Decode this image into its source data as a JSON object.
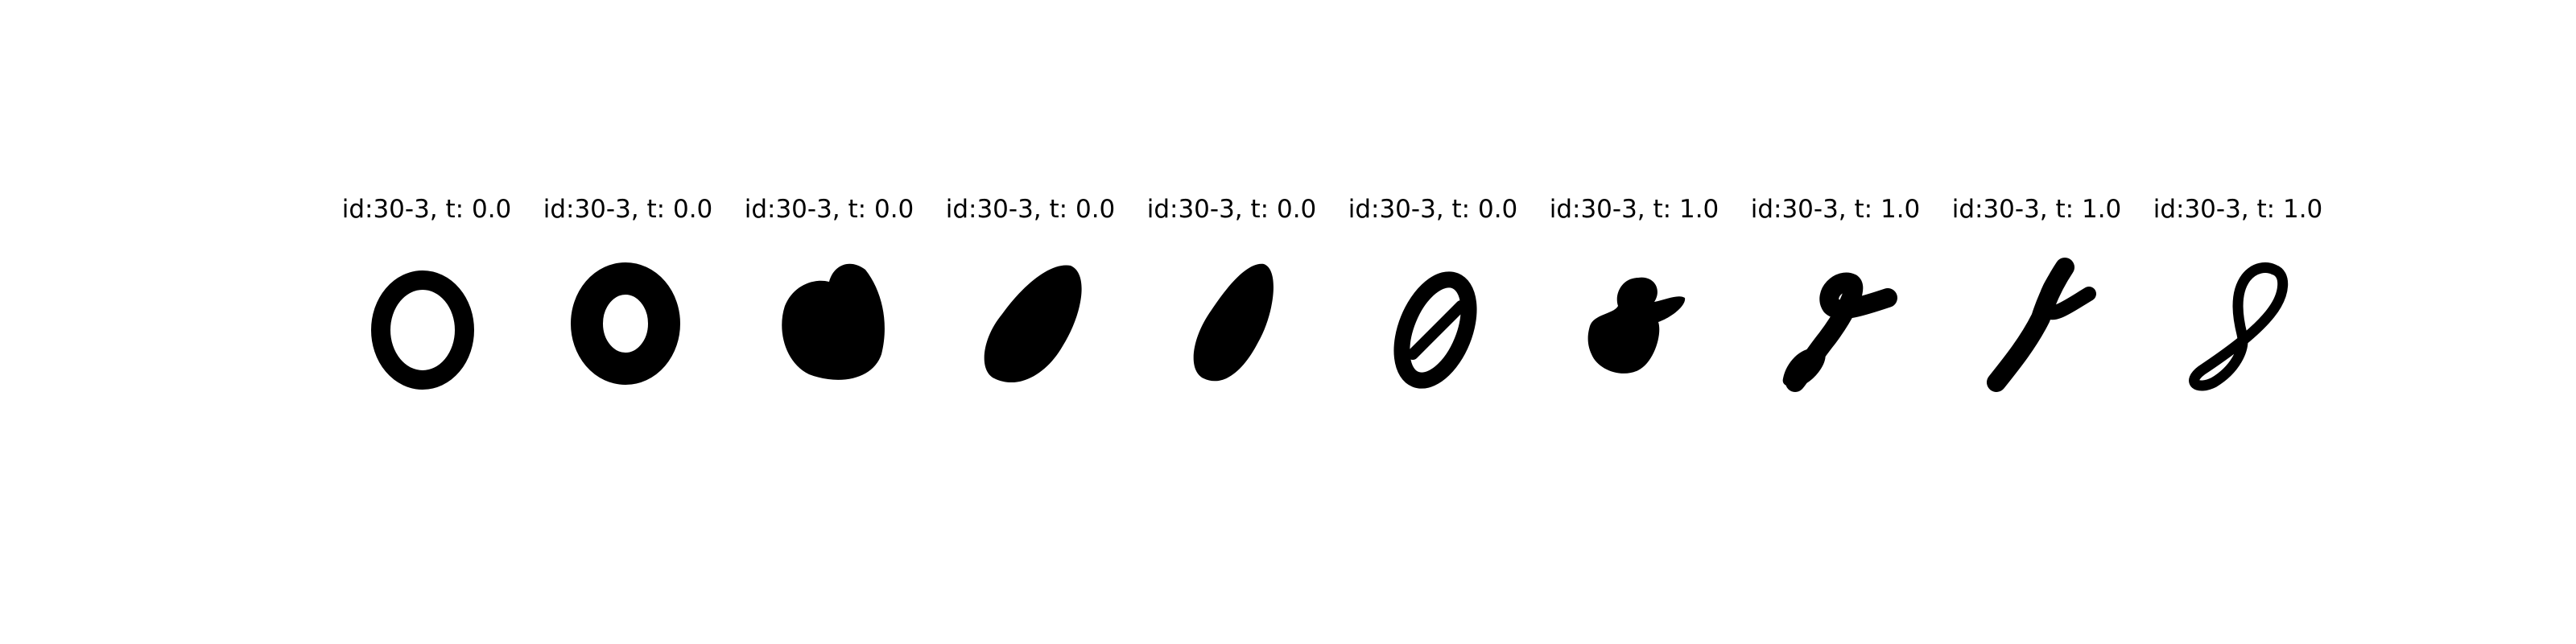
{
  "panels": [
    {
      "title": "id:30-3, t: 0.0",
      "digit_icon": "handwritten-zero-round"
    },
    {
      "title": "id:30-3, t: 0.0",
      "digit_icon": "handwritten-zero-thick"
    },
    {
      "title": "id:30-3, t: 0.0",
      "digit_icon": "handwritten-zero-blob"
    },
    {
      "title": "id:30-3, t: 0.0",
      "digit_icon": "handwritten-zero-slanted"
    },
    {
      "title": "id:30-3, t: 0.0",
      "digit_icon": "handwritten-zero-slanted-narrow"
    },
    {
      "title": "id:30-3, t: 0.0",
      "digit_icon": "handwritten-zero-crossed"
    },
    {
      "title": "id:30-3, t: 1.0",
      "digit_icon": "handwritten-eight-blob"
    },
    {
      "title": "id:30-3, t: 1.0",
      "digit_icon": "handwritten-eight-thick"
    },
    {
      "title": "id:30-3, t: 1.0",
      "digit_icon": "handwritten-eight-slanted"
    },
    {
      "title": "id:30-3, t: 1.0",
      "digit_icon": "handwritten-eight-thin"
    }
  ],
  "colors": {
    "background": "#ffffff",
    "ink": "#000000"
  }
}
